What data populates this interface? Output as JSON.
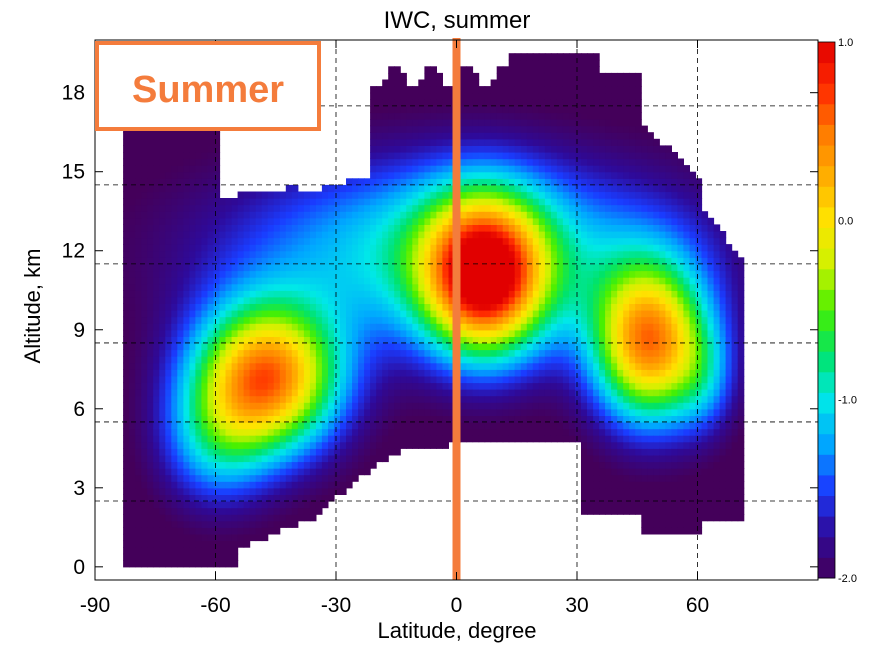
{
  "chart_data": {
    "type": "heatmap",
    "title": "IWC, summer",
    "xlabel": "Latitude, degree",
    "ylabel": "Altitude, km",
    "xlim": [
      -90,
      90
    ],
    "ylim": [
      -0.5,
      20
    ],
    "xticks": [
      -90,
      -60,
      -30,
      0,
      30,
      60
    ],
    "xtick_labels": [
      "-90",
      "-60",
      "-30",
      "0",
      "30",
      "60"
    ],
    "yticks": [
      0,
      3,
      6,
      9,
      12,
      15,
      18
    ],
    "ytick_labels": [
      "0",
      "3",
      "6",
      "9",
      "12",
      "15",
      "18"
    ],
    "grid": "dashed",
    "colorbar": {
      "range": [
        -2.0,
        1.0
      ],
      "tick_values": [
        1.0,
        0.0,
        -1.0,
        -2.0
      ],
      "tick_labels": [
        "1.0",
        "0.0",
        "-1.0",
        "-2.0"
      ],
      "colormap": "rainbow (purple-blue-cyan-green-yellow-orange-red)"
    },
    "reference_line": {
      "x": 0,
      "color": "#f47c3c"
    },
    "data_description": "log10 IWC by latitude (-83 to 71) and altitude (0 to 19.5 km); maxima near 6-9 km at 60S-35S, near 11-12 km at 0-15N, and near 8-9 km at 40N-60N",
    "valid_x_range": [
      -83,
      71
    ]
  },
  "badge": {
    "text": "Summer",
    "color": "#f47c3c"
  },
  "colors": {
    "reference_line": "#f47c3c",
    "grid": "#000000",
    "colormap_stops": [
      "#44005a",
      "#2e0a9a",
      "#1a3cff",
      "#00a6ff",
      "#00e8e8",
      "#00e36a",
      "#48f000",
      "#cef200",
      "#ffe400",
      "#ffae00",
      "#ff7a00",
      "#ff2a00",
      "#e10000"
    ]
  }
}
